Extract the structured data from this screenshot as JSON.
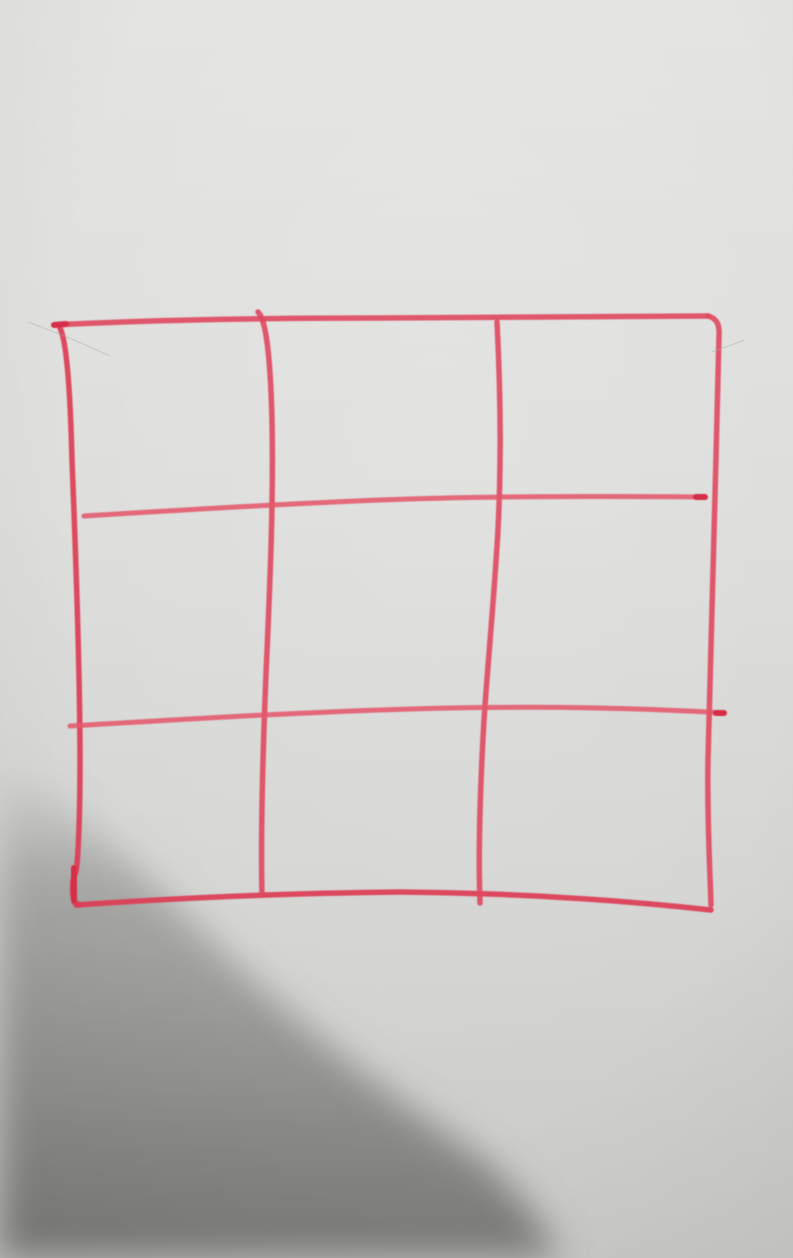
{
  "scene": {
    "subject": "hand-drawn-3x3-grid",
    "paper_color": "#e2e2e0",
    "ink_color": "#e0485e",
    "ink_dark_color": "#d62f49",
    "shadow_color": "#6f6f6d",
    "rows": 3,
    "columns": 3
  }
}
